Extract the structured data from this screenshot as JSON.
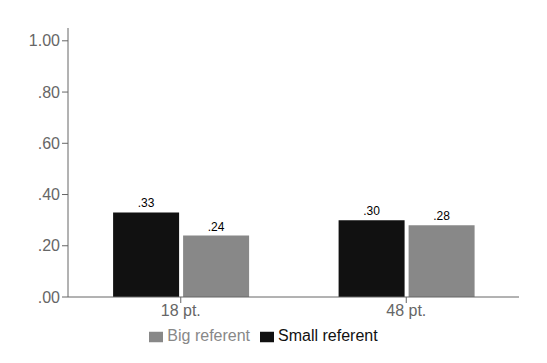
{
  "chart_data": {
    "type": "bar",
    "categories": [
      "18 pt.",
      "48 pt."
    ],
    "series": [
      {
        "name": "Small referent",
        "color": "#111111",
        "values": [
          0.33,
          0.3
        ],
        "value_labels": [
          ".33",
          ".30"
        ]
      },
      {
        "name": "Big referent",
        "color": "#888888",
        "values": [
          0.24,
          0.28
        ],
        "value_labels": [
          ".24",
          ".28"
        ]
      }
    ],
    "ylim": [
      0.0,
      1.05
    ],
    "yticks": [
      {
        "value": 0.0,
        "label": ".00"
      },
      {
        "value": 0.2,
        "label": ".20"
      },
      {
        "value": 0.4,
        "label": ".40"
      },
      {
        "value": 0.6,
        "label": ".60"
      },
      {
        "value": 0.8,
        "label": ".80"
      },
      {
        "value": 1.0,
        "label": "1.00"
      }
    ],
    "grid": false,
    "legend": "bottom",
    "data_labels": true
  }
}
